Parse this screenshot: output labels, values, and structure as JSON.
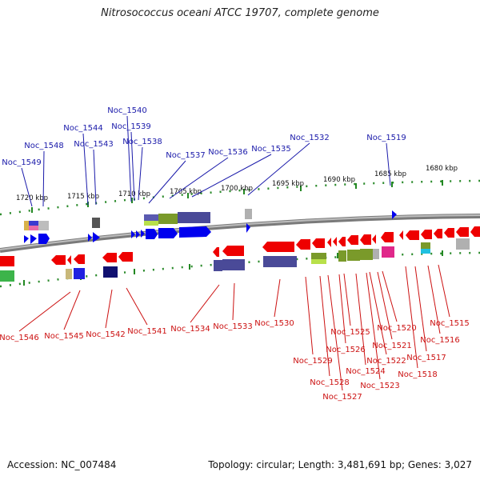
{
  "title": "Nitrosococcus oceani ATCC 19707, complete genome",
  "footer": {
    "accession": "Accession: NC_007484",
    "summary": "Topology: circular; Length: 3,481,691 bp; Genes: 3,027"
  },
  "scale_labels": [
    "1720 kbp",
    "1715 kbp",
    "1710 kbp",
    "1705 kbp",
    "1700 kbp",
    "1695 kbp",
    "1690 kbp",
    "1685 kbp",
    "1680 kbp"
  ],
  "top_genes": [
    "Noc_1549",
    "Noc_1548",
    "Noc_1544",
    "Noc_1543",
    "Noc_1540",
    "Noc_1539",
    "Noc_1538",
    "Noc_1537",
    "Noc_1536",
    "Noc_1535",
    "Noc_1532",
    "Noc_1519"
  ],
  "bottom_genes": [
    "Noc_1546",
    "Noc_1545",
    "Noc_1542",
    "Noc_1541",
    "Noc_1534",
    "Noc_1533",
    "Noc_1530",
    "Noc_1529",
    "Noc_1528",
    "Noc_1527",
    "Noc_1526",
    "Noc_1525",
    "Noc_1524",
    "Noc_1523",
    "Noc_1522",
    "Noc_1521",
    "Noc_1520",
    "Noc_1518",
    "Noc_1517",
    "Noc_1516",
    "Noc_1515"
  ],
  "colors": {
    "forward": "#0000ee",
    "reverse": "#ee0000",
    "backbone": "#888888",
    "tick": "#228822",
    "label_top": "#1a1aaa",
    "label_bottom": "#cc1111"
  }
}
